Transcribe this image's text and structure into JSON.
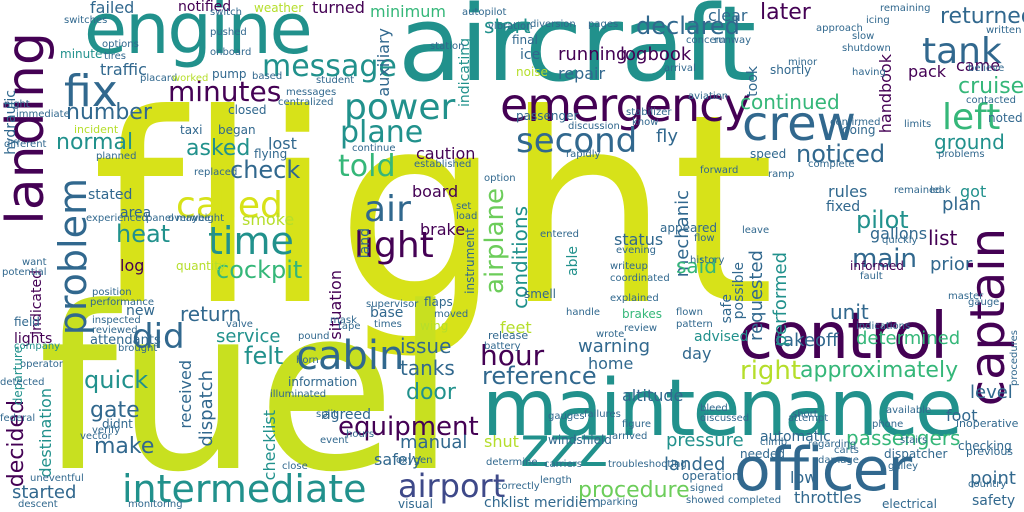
{
  "palette": {
    "background": "#ffffff",
    "yellow": "#d7e219",
    "lime": "#b5de2b",
    "green": "#6ccd5a",
    "teal": "#21918c",
    "teal_light": "#35b779",
    "blue": "#31688e",
    "navy": "#3e4989",
    "purple": "#440154"
  },
  "words": {
    "flight": "flight",
    "fuel": "fuel",
    "aircraft": "aircraft",
    "maintenance": "maintenance",
    "engine": "engine",
    "control": "control",
    "landing": "landing",
    "officer": "officer",
    "emergency": "emergency",
    "intermediate": "intermediate",
    "captain": "captain",
    "crew": "crew",
    "zzz": "zzz",
    "tank": "tank",
    "fix": "fix",
    "problem": "problem",
    "power": "power",
    "second": "second",
    "called": "called",
    "time": "time",
    "light": "light",
    "cabin": "cabin",
    "did": "did",
    "airport": "airport",
    "message": "message",
    "minutes": "minutes",
    "left": "left",
    "air": "air",
    "plane": "plane",
    "told": "told",
    "cockpit": "cockpit",
    "airplane": "airplane",
    "hour": "hour",
    "equipment": "equipment",
    "procedure": "procedure",
    "passengers": "passengers",
    "approximately": "approximately",
    "right": "right",
    "reference": "reference",
    "check": "check",
    "main": "main",
    "pilot": "pilot",
    "continued": "continued",
    "declared": "declared",
    "returned": "returned",
    "cruise": "cruise",
    "ground": "ground",
    "noticed": "noticed",
    "number": "number",
    "normal": "normal",
    "asked": "asked",
    "start": "start",
    "later": "later",
    "list": "list",
    "heat": "heat",
    "return": "return",
    "felt": "felt",
    "service": "service",
    "quick": "quick",
    "gate": "gate",
    "make": "make",
    "decided": "decided",
    "destination": "destination",
    "started": "started",
    "issue": "issue",
    "tanks": "tanks",
    "door": "door",
    "manual": "manual",
    "safely": "safely",
    "pressure": "pressure",
    "landed": "landed",
    "mechanic": "mechanic",
    "conditions": "conditions",
    "status": "status",
    "said": "said",
    "warning": "warning",
    "home": "home",
    "takeoff": "takeoff",
    "determined": "determined",
    "unit": "unit",
    "requested": "requested",
    "performed": "performed",
    "level": "level",
    "point": "point",
    "safety": "safety",
    "hydraulic": "hydraulic",
    "failed": "failed",
    "notified": "notified",
    "weather": "weather",
    "turned": "turned",
    "minimum": "minimum",
    "traffic": "traffic",
    "auxiliary": "auxiliary",
    "running": "running",
    "logbook": "logbook",
    "repair": "repair",
    "clear": "clear",
    "tank2": "pack",
    "came": "came",
    "handbook": "handbook",
    "caution": "caution",
    "board": "board",
    "smoke": "smoke",
    "situation": "situation",
    "brake": "brake",
    "lost": "lost",
    "fly": "fly",
    "gallons": "gallons",
    "informed": "informed",
    "rules": "rules",
    "fixed": "fixed",
    "plan": "plan",
    "got": "got",
    "prior": "prior",
    "advised": "advised",
    "day": "day",
    "received": "received",
    "dispatch": "dispatch",
    "checklist": "checklist",
    "attendants": "attendants",
    "information": "information",
    "agreed": "agreed",
    "altitude": "altitude",
    "automatic": "automatic",
    "foot": "foot",
    "throttles": "throttles",
    "low": "low",
    "visual": "visual",
    "chklist": "chklist",
    "meridiem": "meridiem",
    "minute": "minute",
    "log": "log",
    "area": "area",
    "new": "new",
    "base": "base",
    "mode": "mode",
    "ice": "ice",
    "noise": "noise",
    "land": "land",
    "able": "able",
    "brakes": "brakes",
    "flaps": "flaps",
    "shut": "shut",
    "feet": "feet",
    "safe": "safe",
    "possible": "possible",
    "took": "took",
    "going": "going",
    "complete": "complete",
    "speed": "speed",
    "doing": "doing",
    "lights": "lights",
    "indicated": "indicated",
    "field": "field",
    "operator": "operator",
    "departure": "departure",
    "descent": "descent",
    "electrical": "electrical",
    "checking": "checking",
    "dispatcher": "dispatcher",
    "previous": "previous",
    "leak": "leak",
    "needed": "needed",
    "windshield": "windshield",
    "arrived": "arrived",
    "operation": "operation",
    "oxygen": "oxygen",
    "battery": "battery",
    "release": "release",
    "reviewed": "reviewed",
    "company": "company",
    "didnt": "didnt",
    "experienced": "experienced",
    "stated": "stated",
    "began": "began",
    "flying": "flying",
    "planned": "planned",
    "incident": "incident",
    "closed": "closed",
    "switch": "switch",
    "pump": "pump",
    "taxi": "taxi",
    "placard": "placard",
    "worked": "worked",
    "pushed": "pushed",
    "option": "option",
    "final": "final",
    "indicating": "indicating",
    "instrument": "instrument",
    "passenger": "passenger",
    "know": "know",
    "replaced": "replaced",
    "appeared": "appeared",
    "runway": "runway",
    "diversion": "diversion",
    "station": "station",
    "pages": "pages",
    "arrival": "arrival",
    "inspection": "inspection",
    "shortly": "shortly",
    "having": "having",
    "believe": "believe",
    "noted": "noted",
    "contacted": "contacted",
    "remained": "remained",
    "inoperative": "inoperative",
    "available": "available",
    "procedures": "procedures",
    "quickly": "quickly",
    "valve": "valve",
    "pound": "pound",
    "tape": "tape",
    "smell": "smell",
    "handle": "handle",
    "flown": "flown",
    "indications": "indications",
    "writeup": "writeup",
    "coordinated": "coordinated",
    "explained": "explained",
    "understand": "understand",
    "country": "country",
    "damage": "damage",
    "repaired": "repaired",
    "hours": "hours",
    "continue": "continue",
    "established": "established",
    "problems": "problems",
    "computer": "computer",
    "gauge": "gauge",
    "master": "master",
    "vibration": "vibration",
    "autopilot": "autopilot",
    "times": "times",
    "moved": "moved",
    "limits": "limits",
    "signed": "signed",
    "showed": "showed",
    "completed": "completed",
    "maybe": "maybe",
    "panel": "panel",
    "want": "want",
    "potential": "potential",
    "position": "position",
    "verify": "verify",
    "vector": "vector",
    "monitoring": "monitoring",
    "detected": "detected",
    "federal": "federal",
    "uneventful": "uneventful",
    "close": "close",
    "brought": "brought",
    "seat": "seat",
    "horn": "horn",
    "ramp": "ramp",
    "climb": "climb",
    "attempt": "attempt",
    "review": "review",
    "wrote": "wrote",
    "pattern": "pattern",
    "history": "history",
    "fault": "fault",
    "set": "set",
    "load": "load",
    "supervisor": "supervisor",
    "wing": "wing",
    "split": "split",
    "event": "event",
    "galley": "galley",
    "mask": "mask",
    "immediate": "immediate",
    "different": "different",
    "night": "night",
    "switches": "switches",
    "tires": "tires",
    "options": "options",
    "onboard": "onboard",
    "based": "based",
    "tower": "tower",
    "centralized": "centralized",
    "messages": "messages",
    "student": "student",
    "including": "including",
    "inspected": "inspected",
    "performance": "performance",
    "illuminated": "illuminated",
    "overweight": "overweight",
    "minor": "minor",
    "discussion": "discussion",
    "cart": "cart",
    "stabilizer": "stabilizer",
    "aviation": "aviation",
    "rapidly": "rapidly",
    "flow": "flow",
    "caused": "caused",
    "normally": "normally",
    "leave": "leave",
    "quantity": "quantity",
    "forward": "forward",
    "entered": "entered",
    "gauges": "gauges",
    "failure": "failure",
    "failures": "failures",
    "discussed": "discussed",
    "delay": "delay",
    "bleed": "bleed",
    "carriers": "carriers",
    "length": "length",
    "troubleshooting": "troubleshooting",
    "parking": "parking",
    "figure": "figure",
    "correctly": "correctly",
    "determine": "determine",
    "regarding": "regarding",
    "phone": "phone",
    "stairs": "stairs",
    "confirmed": "confirmed",
    "policy": "policy",
    "short": "short",
    "carts": "carts",
    "shutdown": "shutdown",
    "concern": "concern",
    "approach": "approach",
    "slow": "slow",
    "evening": "evening",
    "terminal": "terminal",
    "apu": "apu",
    "icing": "icing",
    "elevator": "elevator",
    "remaining": "remaining",
    "written": "written"
  }
}
